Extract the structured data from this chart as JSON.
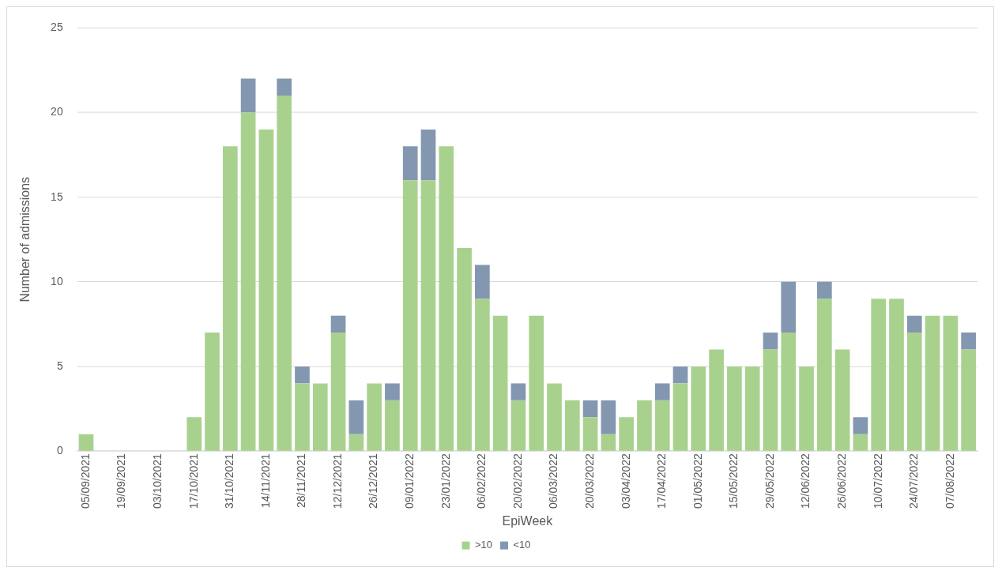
{
  "chart_data": {
    "type": "bar",
    "stacked": true,
    "xlabel": "EpiWeek",
    "ylabel": "Number of admissions",
    "categories": [
      "05/09/2021",
      null,
      "19/09/2021",
      null,
      "03/10/2021",
      null,
      "17/10/2021",
      null,
      "31/10/2021",
      null,
      "14/11/2021",
      null,
      "28/11/2021",
      null,
      "12/12/2021",
      null,
      "26/12/2021",
      null,
      "09/01/2022",
      null,
      "23/01/2022",
      null,
      "06/02/2022",
      null,
      "20/02/2022",
      null,
      "06/03/2022",
      null,
      "20/03/2022",
      null,
      "03/04/2022",
      null,
      "17/04/2022",
      null,
      "01/05/2022",
      null,
      "15/05/2022",
      null,
      "29/05/2022",
      null,
      "12/06/2022",
      null,
      "26/06/2022",
      null,
      "10/07/2022",
      null,
      "24/07/2022",
      null,
      "07/08/2022",
      null
    ],
    "series": [
      {
        "name": ">10",
        "color": "#a9d18e",
        "values": [
          1,
          0,
          0,
          0,
          0,
          0,
          2,
          7,
          18,
          20,
          19,
          21,
          4,
          4,
          7,
          1,
          4,
          3,
          16,
          16,
          18,
          12,
          9,
          8,
          3,
          8,
          4,
          3,
          2,
          1,
          2,
          3,
          3,
          4,
          5,
          6,
          5,
          5,
          6,
          7,
          5,
          9,
          6,
          1,
          9,
          9,
          7,
          8,
          8,
          6
        ]
      },
      {
        "name": "<10",
        "color": "#8497b0",
        "values": [
          0,
          0,
          0,
          0,
          0,
          0,
          0,
          0,
          0,
          2,
          0,
          1,
          1,
          0,
          1,
          2,
          0,
          1,
          2,
          3,
          0,
          0,
          2,
          0,
          1,
          0,
          0,
          0,
          1,
          2,
          0,
          0,
          1,
          1,
          0,
          0,
          0,
          0,
          1,
          3,
          0,
          1,
          0,
          1,
          0,
          0,
          1,
          0,
          0,
          1
        ]
      }
    ],
    "ylim": [
      0,
      25
    ],
    "yticks": [
      0,
      5,
      10,
      15,
      20,
      25
    ],
    "grid": "y",
    "legend": "bottom"
  }
}
